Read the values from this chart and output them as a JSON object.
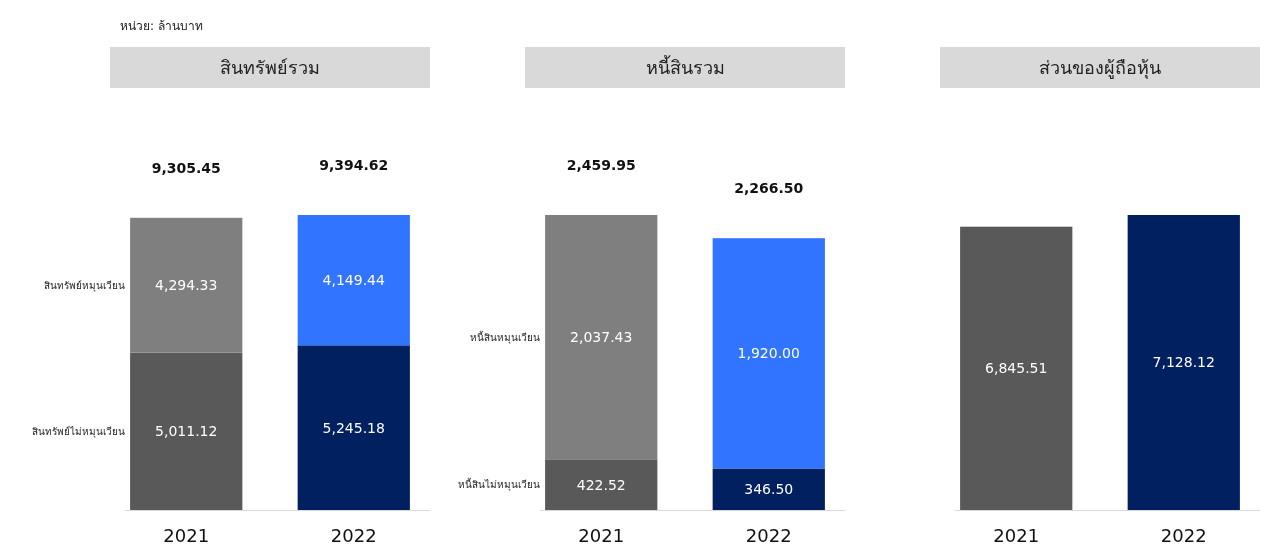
{
  "chart_data": [
    {
      "type": "bar",
      "title": "สินทรัพย์รวม",
      "annotations": [
        "หน่วย: ล้านบาท"
      ],
      "categories": [
        "2021",
        "2022"
      ],
      "stacked": true,
      "totals": [
        "9,305.45",
        "9,394.62"
      ],
      "series": [
        {
          "name": "สินทรัพย์ไม่หมุนเวียน",
          "colors": [
            "#595959",
            "#002060"
          ],
          "values": [
            5011.12,
            5245.18
          ],
          "value_labels": [
            "5,011.12",
            "5,245.18"
          ]
        },
        {
          "name": "สินทรัพย์หมุนเวียน",
          "colors": [
            "#7f7f7f",
            "#3074ff"
          ],
          "values": [
            4294.33,
            4149.44
          ],
          "value_labels": [
            "4,294.33",
            "4,149.44"
          ]
        }
      ]
    },
    {
      "type": "bar",
      "title": "หนี้สินรวม",
      "categories": [
        "2021",
        "2022"
      ],
      "stacked": true,
      "totals": [
        "2,459.95",
        "2,266.50"
      ],
      "series": [
        {
          "name": "หนี้สินไม่หมุนเวียน",
          "colors": [
            "#595959",
            "#002060"
          ],
          "values": [
            422.52,
            346.5
          ],
          "value_labels": [
            "422.52",
            "346.50"
          ]
        },
        {
          "name": "หนี้สินหมุนเวียน",
          "colors": [
            "#7f7f7f",
            "#3074ff"
          ],
          "values": [
            2037.43,
            1920.0
          ],
          "value_labels": [
            "2,037.43",
            "1,920.00"
          ]
        }
      ]
    },
    {
      "type": "bar",
      "title": "ส่วนของผู้ถือหุ้น",
      "categories": [
        "2021",
        "2022"
      ],
      "series": [
        {
          "colors": [
            "#595959",
            "#002060"
          ],
          "values": [
            6845.51,
            7128.12
          ],
          "value_labels": [
            "6,845.51",
            "7,128.12"
          ]
        }
      ]
    }
  ]
}
